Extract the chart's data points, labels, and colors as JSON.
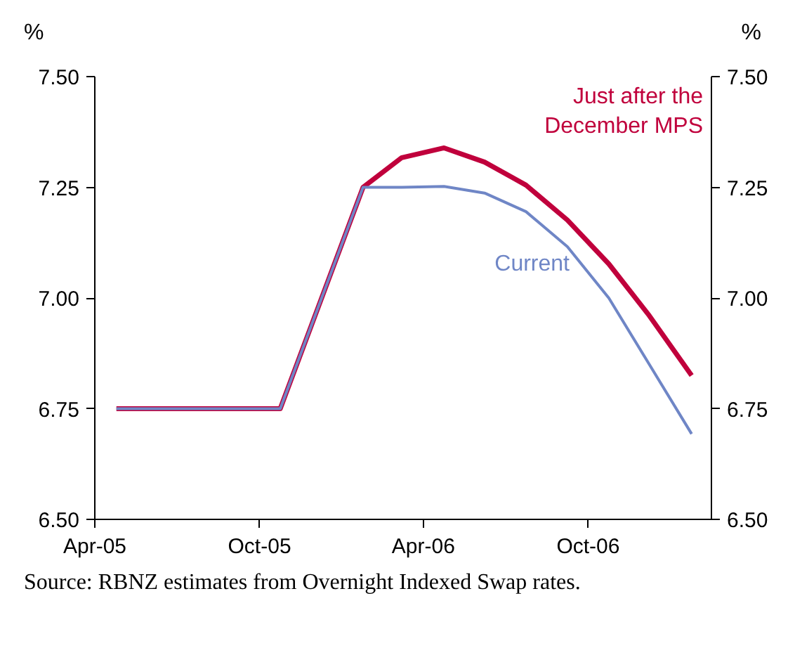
{
  "chart_data": {
    "type": "line",
    "ylabel": "%",
    "y2label": "%",
    "annotations": [
      "Source: RBNZ estimates from Overnight Indexed Swap rates."
    ],
    "x": [
      "2005-04-25",
      "2005-10-24",
      "2006-01-24",
      "2006-03-08",
      "2006-04-24",
      "2006-06-08",
      "2006-07-24",
      "2006-09-08",
      "2006-10-24",
      "2006-12-08",
      "2007-01-24"
    ],
    "series": [
      {
        "name": "Just after the December MPS",
        "color": "#c0003c",
        "values": [
          6.75,
          6.75,
          7.25,
          7.317,
          7.339,
          7.307,
          7.255,
          7.176,
          7.077,
          6.96,
          6.825
        ]
      },
      {
        "name": "Current",
        "color": "#6f86c6",
        "values": [
          6.75,
          6.75,
          7.25,
          7.25,
          7.252,
          7.237,
          7.195,
          7.116,
          7.0,
          6.85,
          6.693
        ]
      }
    ],
    "xlim": [
      "2005-04-01",
      "2007-02-15"
    ],
    "xticks": [
      {
        "value": "2005-04-01",
        "label": "Apr-05"
      },
      {
        "value": "2005-10-01",
        "label": "Oct-05"
      },
      {
        "value": "2006-04-01",
        "label": "Apr-06"
      },
      {
        "value": "2006-10-01",
        "label": "Oct-06"
      }
    ],
    "ylim": [
      6.5,
      7.5
    ],
    "yticks": [
      {
        "value": 6.5,
        "label": "6.50"
      },
      {
        "value": 6.75,
        "label": "6.75"
      },
      {
        "value": 7.0,
        "label": "7.00"
      },
      {
        "value": 7.25,
        "label": "7.25"
      },
      {
        "value": 7.5,
        "label": "7.50"
      }
    ],
    "y2lim": [
      6.5,
      7.5
    ],
    "y2ticks": [
      {
        "value": 6.5,
        "label": "6.50"
      },
      {
        "value": 6.75,
        "label": "6.75"
      },
      {
        "value": 7.0,
        "label": "7.00"
      },
      {
        "value": 7.25,
        "label": "7.25"
      },
      {
        "value": 7.5,
        "label": "7.50"
      }
    ],
    "grid": false,
    "legend": false,
    "marker": "none",
    "line_style": "solid"
  }
}
